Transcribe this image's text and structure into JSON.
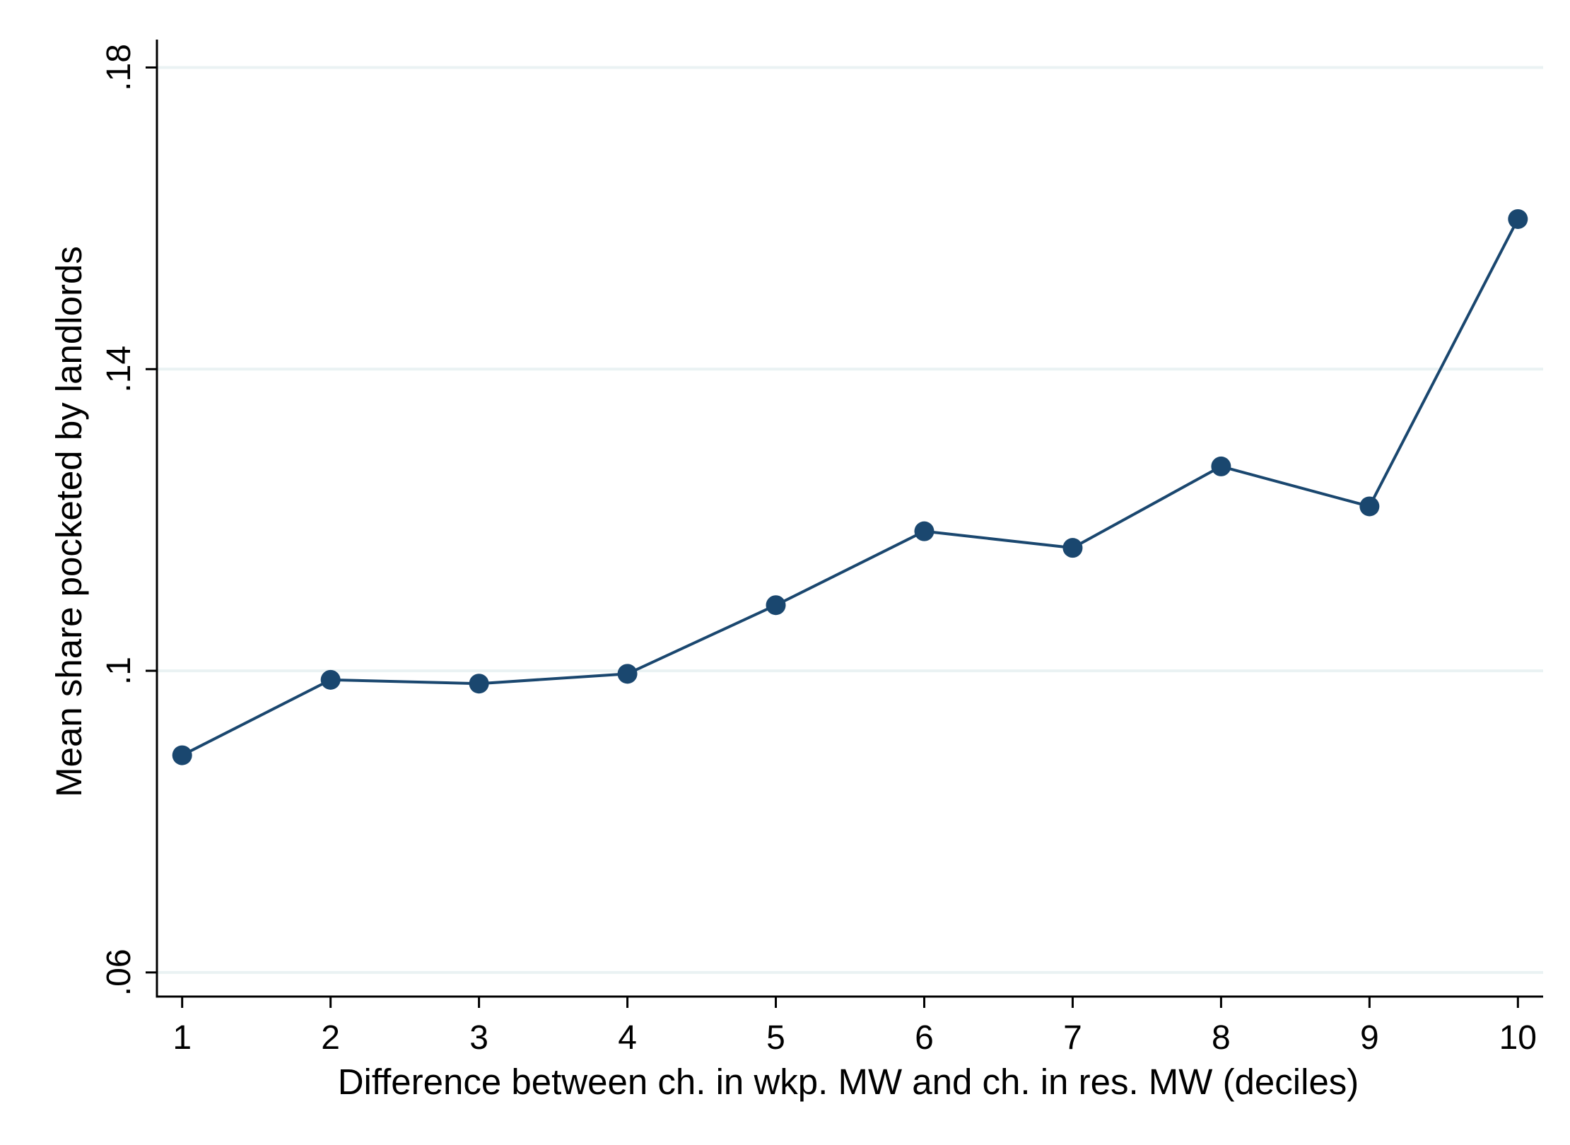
{
  "chart_data": {
    "type": "line",
    "title": "",
    "xlabel": "Difference between ch. in wkp. MW and ch. in res. MW (deciles)",
    "ylabel": "Mean share pocketed by landlords",
    "x": [
      1,
      2,
      3,
      4,
      5,
      6,
      7,
      8,
      9,
      10
    ],
    "series": [
      {
        "values": [
          0.0888,
          0.0988,
          0.0983,
          0.0996,
          0.1087,
          0.1185,
          0.1163,
          0.1271,
          0.1218,
          0.1599
        ]
      }
    ],
    "xticks": [
      "1",
      "2",
      "3",
      "4",
      "5",
      "6",
      "7",
      "8",
      "9",
      "10"
    ],
    "yticks": [
      {
        "value": 0.06,
        "label": ".06"
      },
      {
        "value": 0.1,
        "label": ".1"
      },
      {
        "value": 0.14,
        "label": ".14"
      },
      {
        "value": 0.18,
        "label": ".18"
      }
    ],
    "xlim": [
      0.83,
      10.17
    ],
    "ylim": [
      0.0568,
      0.1837
    ],
    "grid": true,
    "line_color": "#1a476f",
    "grid_color": "#eaf2f3",
    "axis_color": "#000000"
  }
}
